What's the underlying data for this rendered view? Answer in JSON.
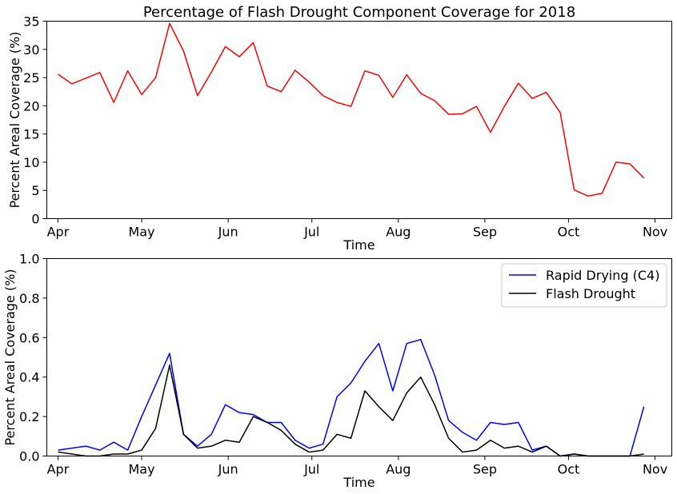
{
  "chart_data": [
    {
      "type": "line",
      "title": "Percentage of Flash Drought Component Coverage for 2018",
      "xlabel": "Time",
      "ylabel": "Percent Areal Coverage (%)",
      "xlim": [
        "2018-03-28",
        "2018-11-07"
      ],
      "ylim": [
        0,
        35
      ],
      "yticks": [
        0,
        5,
        10,
        15,
        20,
        25,
        30,
        35
      ],
      "xticks": [
        {
          "date": "2018-04-01",
          "label": "Apr"
        },
        {
          "date": "2018-05-01",
          "label": "May"
        },
        {
          "date": "2018-06-01",
          "label": "Jun"
        },
        {
          "date": "2018-07-01",
          "label": "Jul"
        },
        {
          "date": "2018-08-01",
          "label": "Aug"
        },
        {
          "date": "2018-09-01",
          "label": "Sep"
        },
        {
          "date": "2018-10-01",
          "label": "Oct"
        },
        {
          "date": "2018-11-01",
          "label": "Nov"
        }
      ],
      "grid": false,
      "series": [
        {
          "color": "#ff0000",
          "x": [
            "2018-04-01",
            "2018-04-06",
            "2018-04-11",
            "2018-04-16",
            "2018-04-21",
            "2018-04-26",
            "2018-05-01",
            "2018-05-06",
            "2018-05-11",
            "2018-05-16",
            "2018-05-21",
            "2018-05-26",
            "2018-05-31",
            "2018-06-05",
            "2018-06-10",
            "2018-06-15",
            "2018-06-20",
            "2018-06-25",
            "2018-06-30",
            "2018-07-05",
            "2018-07-10",
            "2018-07-15",
            "2018-07-20",
            "2018-07-25",
            "2018-07-30",
            "2018-08-04",
            "2018-08-09",
            "2018-08-14",
            "2018-08-19",
            "2018-08-24",
            "2018-08-29",
            "2018-09-03",
            "2018-09-08",
            "2018-09-13",
            "2018-09-18",
            "2018-09-23",
            "2018-09-28",
            "2018-10-03",
            "2018-10-08",
            "2018-10-13",
            "2018-10-18",
            "2018-10-23",
            "2018-10-28"
          ],
          "y": [
            25.6,
            23.9,
            24.9,
            25.9,
            20.6,
            26.2,
            22.0,
            25.0,
            34.6,
            29.7,
            21.8,
            26.0,
            30.5,
            28.7,
            31.2,
            23.5,
            22.5,
            26.3,
            24.2,
            21.8,
            20.6,
            19.9,
            26.2,
            25.4,
            21.5,
            25.5,
            22.2,
            20.9,
            18.5,
            18.6,
            19.9,
            15.3,
            19.9,
            24.0,
            21.3,
            22.4,
            18.8,
            5.1,
            4.0,
            4.5,
            10.0,
            9.7,
            7.2
          ]
        }
      ]
    },
    {
      "type": "line",
      "xlabel": "Time",
      "ylabel": "Percent Areal Coverage (%)",
      "xlim": [
        "2018-03-28",
        "2018-11-07"
      ],
      "ylim": [
        0,
        1.0
      ],
      "yticks": [
        0.0,
        0.2,
        0.4,
        0.6,
        0.8,
        1.0
      ],
      "ytick_labels": [
        "0.0",
        "0.2",
        "0.4",
        "0.6",
        "0.8",
        "1.0"
      ],
      "xticks": [
        {
          "date": "2018-04-01",
          "label": "Apr"
        },
        {
          "date": "2018-05-01",
          "label": "May"
        },
        {
          "date": "2018-06-01",
          "label": "Jun"
        },
        {
          "date": "2018-07-01",
          "label": "Jul"
        },
        {
          "date": "2018-08-01",
          "label": "Aug"
        },
        {
          "date": "2018-09-01",
          "label": "Sep"
        },
        {
          "date": "2018-10-01",
          "label": "Oct"
        },
        {
          "date": "2018-11-01",
          "label": "Nov"
        }
      ],
      "grid": false,
      "legend_position": "top-right",
      "series": [
        {
          "name": "Rapid Drying (C4)",
          "color": "#0000ff",
          "x": [
            "2018-04-01",
            "2018-04-06",
            "2018-04-11",
            "2018-04-16",
            "2018-04-21",
            "2018-04-26",
            "2018-05-01",
            "2018-05-06",
            "2018-05-11",
            "2018-05-16",
            "2018-05-21",
            "2018-05-26",
            "2018-05-31",
            "2018-06-05",
            "2018-06-10",
            "2018-06-15",
            "2018-06-20",
            "2018-06-25",
            "2018-06-30",
            "2018-07-05",
            "2018-07-10",
            "2018-07-15",
            "2018-07-20",
            "2018-07-25",
            "2018-07-30",
            "2018-08-04",
            "2018-08-09",
            "2018-08-14",
            "2018-08-19",
            "2018-08-24",
            "2018-08-29",
            "2018-09-03",
            "2018-09-08",
            "2018-09-13",
            "2018-09-18",
            "2018-09-23",
            "2018-09-28",
            "2018-10-03",
            "2018-10-08",
            "2018-10-13",
            "2018-10-18",
            "2018-10-23",
            "2018-10-28"
          ],
          "y": [
            0.03,
            0.04,
            0.05,
            0.03,
            0.07,
            0.03,
            0.2,
            0.36,
            0.52,
            0.11,
            0.05,
            0.11,
            0.26,
            0.22,
            0.21,
            0.17,
            0.17,
            0.08,
            0.04,
            0.06,
            0.3,
            0.37,
            0.48,
            0.57,
            0.33,
            0.57,
            0.59,
            0.41,
            0.18,
            0.12,
            0.08,
            0.17,
            0.16,
            0.17,
            0.03,
            0.05,
            0.0,
            0.01,
            0.0,
            0.0,
            0.0,
            0.0,
            0.25
          ]
        },
        {
          "name": "Flash Drought",
          "color": "#000000",
          "x": [
            "2018-04-01",
            "2018-04-06",
            "2018-04-11",
            "2018-04-16",
            "2018-04-21",
            "2018-04-26",
            "2018-05-01",
            "2018-05-06",
            "2018-05-11",
            "2018-05-16",
            "2018-05-21",
            "2018-05-26",
            "2018-05-31",
            "2018-06-05",
            "2018-06-10",
            "2018-06-15",
            "2018-06-20",
            "2018-06-25",
            "2018-06-30",
            "2018-07-05",
            "2018-07-10",
            "2018-07-15",
            "2018-07-20",
            "2018-07-25",
            "2018-07-30",
            "2018-08-04",
            "2018-08-09",
            "2018-08-14",
            "2018-08-19",
            "2018-08-24",
            "2018-08-29",
            "2018-09-03",
            "2018-09-08",
            "2018-09-13",
            "2018-09-18",
            "2018-09-23",
            "2018-09-28",
            "2018-10-03",
            "2018-10-08",
            "2018-10-13",
            "2018-10-18",
            "2018-10-23",
            "2018-10-28"
          ],
          "y": [
            0.02,
            0.01,
            0.0,
            0.0,
            0.01,
            0.01,
            0.03,
            0.14,
            0.46,
            0.11,
            0.04,
            0.05,
            0.08,
            0.07,
            0.2,
            0.17,
            0.13,
            0.06,
            0.02,
            0.03,
            0.11,
            0.09,
            0.33,
            0.25,
            0.18,
            0.32,
            0.4,
            0.26,
            0.09,
            0.02,
            0.03,
            0.08,
            0.04,
            0.05,
            0.02,
            0.05,
            0.0,
            0.01,
            0.0,
            0.0,
            0.0,
            0.0,
            0.01
          ]
        }
      ]
    }
  ]
}
